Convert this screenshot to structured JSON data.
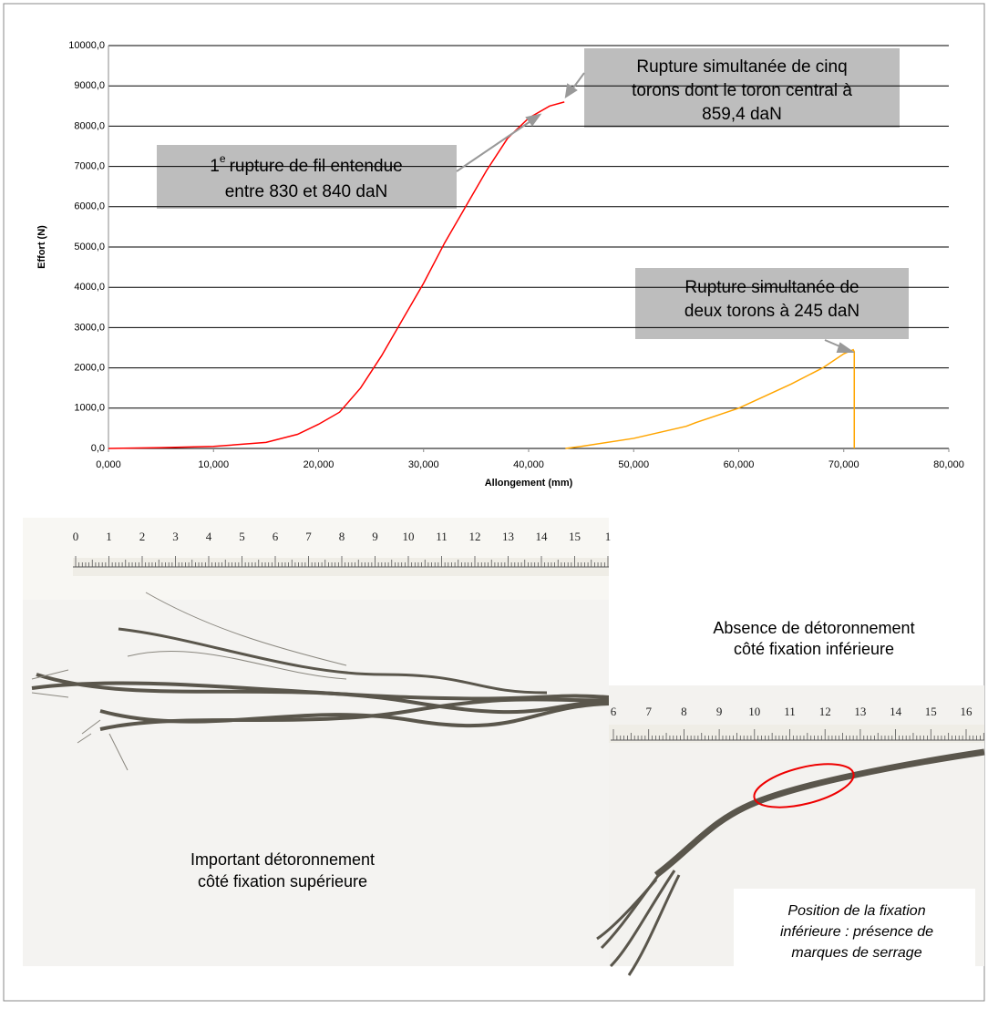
{
  "chart_data": {
    "type": "line",
    "xlabel": "Allongement (mm)",
    "ylabel": "Effort (N)",
    "xlim": [
      0,
      80
    ],
    "ylim": [
      0,
      10000
    ],
    "xticks": [
      {
        "value": 0,
        "label": "0,000"
      },
      {
        "value": 10,
        "label": "10,000"
      },
      {
        "value": 20,
        "label": "20,000"
      },
      {
        "value": 30,
        "label": "30,000"
      },
      {
        "value": 40,
        "label": "40,000"
      },
      {
        "value": 50,
        "label": "50,000"
      },
      {
        "value": 60,
        "label": "60,000"
      },
      {
        "value": 70,
        "label": "70,000"
      },
      {
        "value": 80,
        "label": "80,000"
      }
    ],
    "yticks": [
      {
        "value": 0,
        "label": "0,0"
      },
      {
        "value": 1000,
        "label": "1000,0"
      },
      {
        "value": 2000,
        "label": "2000,0"
      },
      {
        "value": 3000,
        "label": "3000,0"
      },
      {
        "value": 4000,
        "label": "4000,0"
      },
      {
        "value": 5000,
        "label": "5000,0"
      },
      {
        "value": 6000,
        "label": "6000,0"
      },
      {
        "value": 7000,
        "label": "7000,0"
      },
      {
        "value": 8000,
        "label": "8000,0"
      },
      {
        "value": 9000,
        "label": "9000,0"
      },
      {
        "value": 10000,
        "label": "10000,0"
      }
    ],
    "grid": true,
    "series": [
      {
        "color": "#ff0000",
        "x": [
          0,
          5,
          10,
          15,
          18,
          20,
          22,
          24,
          26,
          28,
          30,
          32,
          34,
          36,
          38,
          40,
          42,
          43.4
        ],
        "values": [
          0,
          20,
          50,
          150,
          350,
          600,
          900,
          1500,
          2300,
          3200,
          4100,
          5100,
          6000,
          6900,
          7700,
          8200,
          8500,
          8600
        ]
      },
      {
        "color": "#ffa500",
        "x": [
          43.5,
          45,
          50,
          55,
          56,
          60,
          65,
          68,
          70,
          70.9,
          71,
          71
        ],
        "values": [
          0,
          50,
          250,
          550,
          650,
          1000,
          1600,
          2000,
          2350,
          2450,
          2400,
          0
        ]
      }
    ],
    "annotations": [
      {
        "prefix": "1",
        "sup": "e",
        "lines": [
          "rupture de fil entendue",
          "entre 830 et 840 daN"
        ]
      },
      {
        "lines": [
          "Rupture simultanée de cinq",
          "torons dont le toron central à",
          "859,4 daN"
        ]
      },
      {
        "lines": [
          "Rupture simultanée de",
          "deux torons à 245 daN"
        ]
      }
    ]
  },
  "photos": {
    "rulers": [
      {
        "labels": [
          "0",
          "1",
          "2",
          "3",
          "4",
          "5",
          "6",
          "7",
          "8",
          "9",
          "10",
          "11",
          "12",
          "13",
          "14",
          "15",
          "1"
        ]
      },
      {
        "labels": [
          "6",
          "7",
          "8",
          "9",
          "10",
          "11",
          "12",
          "13",
          "14",
          "15",
          "16"
        ]
      }
    ],
    "captions": [
      {
        "lines": [
          "Absence de détoronnement",
          "côté fixation inférieure"
        ]
      },
      {
        "lines": [
          "Important détoronnement",
          "côté fixation supérieure"
        ]
      },
      {
        "lines": [
          "Position de la fixation",
          "inférieure : présence de",
          "marques de serrage"
        ]
      }
    ]
  }
}
